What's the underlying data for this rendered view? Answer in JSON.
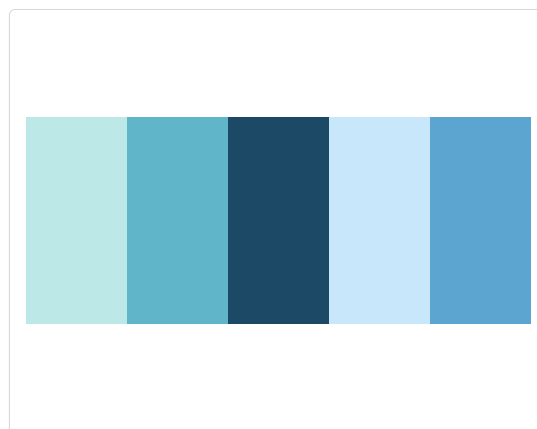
{
  "palette": {
    "swatches": [
      {
        "color": "#bde8e8"
      },
      {
        "color": "#61b5c8"
      },
      {
        "color": "#1c4a66"
      },
      {
        "color": "#c8e7fb"
      },
      {
        "color": "#5ca5d0"
      }
    ]
  }
}
